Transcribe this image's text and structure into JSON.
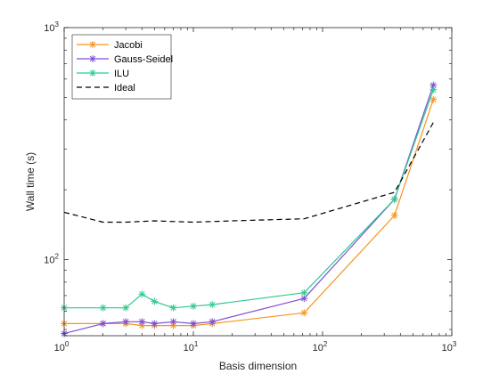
{
  "chart_data": {
    "type": "line",
    "xscale": "log",
    "yscale": "log",
    "xlim": [
      1,
      1000
    ],
    "ylim": [
      47,
      1000
    ],
    "xlabel": "Basis dimension",
    "ylabel": "Wall time (s)",
    "grid": false,
    "legend_position": "top-left",
    "x_ticks": [
      {
        "value": 1,
        "base": "10",
        "exp": "0"
      },
      {
        "value": 10,
        "base": "10",
        "exp": "1"
      },
      {
        "value": 100,
        "base": "10",
        "exp": "2"
      },
      {
        "value": 1000,
        "base": "10",
        "exp": "3"
      }
    ],
    "y_ticks": [
      {
        "value": 100,
        "base": "10",
        "exp": "2"
      },
      {
        "value": 1000,
        "base": "10",
        "exp": "3"
      }
    ],
    "series": [
      {
        "name": "Jacobi",
        "color": "#f7941d",
        "marker": "asterisk",
        "dash": "",
        "x": [
          1,
          2,
          3,
          4,
          5,
          7,
          10,
          14,
          72,
          360,
          720
        ],
        "y": [
          53,
          53,
          53,
          52,
          52,
          52,
          52,
          53,
          59,
          155,
          490
        ]
      },
      {
        "name": "Gauss-Seidel",
        "color": "#7e4fd6",
        "marker": "asterisk",
        "dash": "",
        "x": [
          1,
          2,
          3,
          4,
          5,
          7,
          10,
          14,
          72,
          360,
          720
        ],
        "y": [
          48,
          53,
          54,
          54,
          53,
          54,
          53,
          54,
          68,
          182,
          565
        ]
      },
      {
        "name": "ILU",
        "color": "#2fc98e",
        "marker": "asterisk",
        "dash": "",
        "x": [
          1,
          2,
          3,
          4,
          5,
          7,
          10,
          14,
          72,
          360,
          720
        ],
        "y": [
          62,
          62,
          62,
          71,
          66,
          62,
          63,
          64,
          72,
          182,
          540
        ]
      },
      {
        "name": "Ideal",
        "color": "#000000",
        "marker": "none",
        "dash": "6,4",
        "x": [
          1,
          2,
          3,
          5,
          10,
          20,
          72,
          360,
          720
        ],
        "y": [
          160,
          145,
          145,
          147,
          145,
          147,
          150,
          195,
          390
        ]
      }
    ]
  }
}
